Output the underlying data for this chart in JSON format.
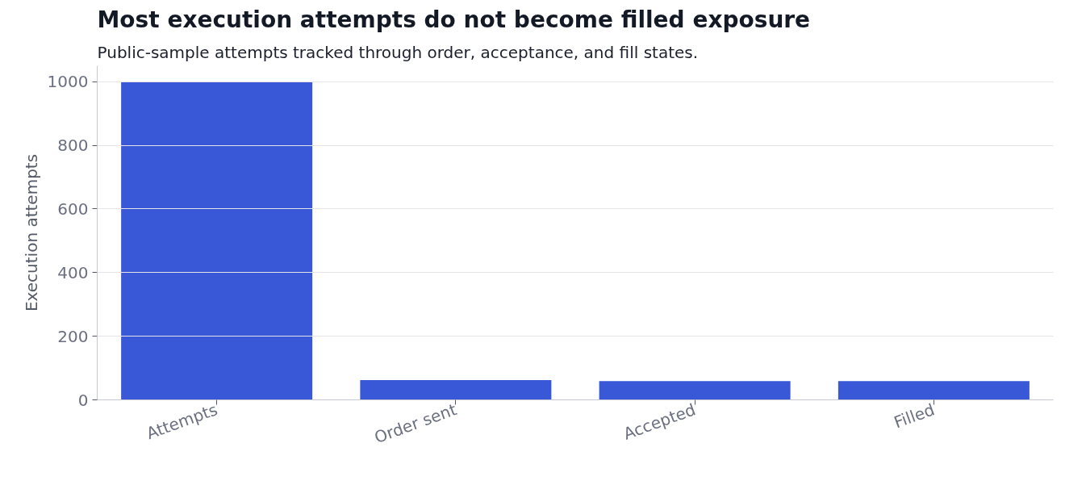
{
  "chart_data": {
    "type": "bar",
    "title": "Most execution attempts do not become filled exposure",
    "subtitle": "Public-sample attempts tracked through order, acceptance, and fill states.",
    "ylabel": "Execution attempts",
    "categories": [
      "Attempts",
      "Order sent",
      "Accepted",
      "Filled"
    ],
    "values": [
      1000,
      62,
      59,
      59
    ],
    "color": "#3858d8",
    "ylim": [
      0,
      1050
    ],
    "yticks": [
      0,
      200,
      400,
      600,
      800,
      1000
    ],
    "grid": "y"
  }
}
